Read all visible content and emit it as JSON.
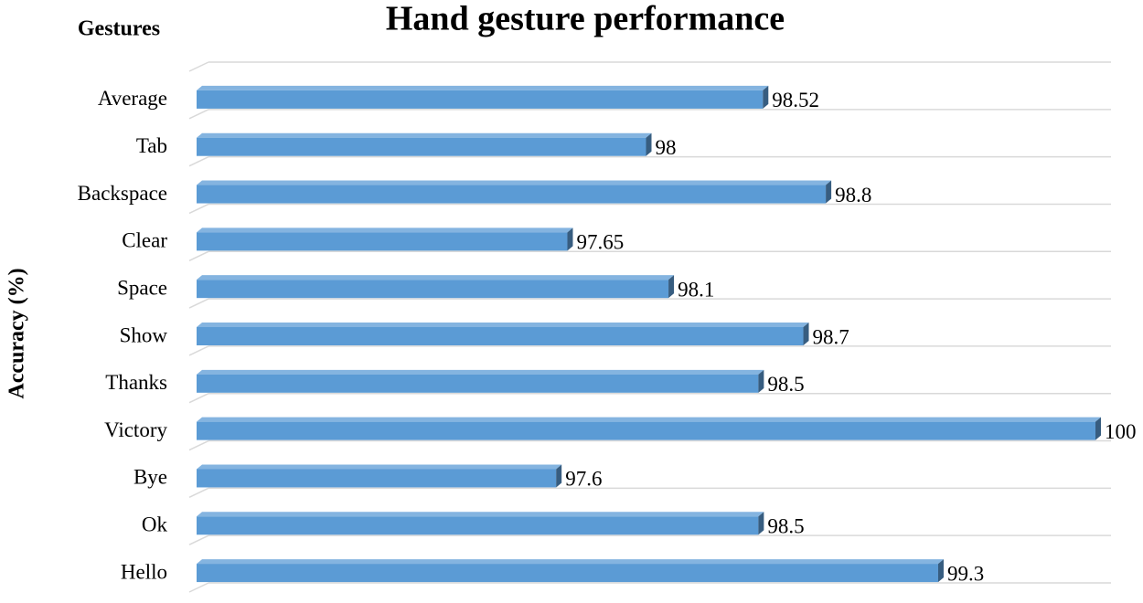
{
  "chart_data": {
    "type": "bar3d_horizontal",
    "title": "Hand gesture performance",
    "category_axis_title": "Gestures",
    "value_axis_title": "Accuracy (%)",
    "categories": [
      "Hello",
      "Ok",
      "Bye",
      "Victory",
      "Thanks",
      "Show",
      "Space",
      "Clear",
      "Backspace",
      "Tab",
      "Average"
    ],
    "values": [
      99.3,
      98.5,
      97.6,
      100,
      98.5,
      98.7,
      98.1,
      97.65,
      98.8,
      98,
      98.52
    ],
    "color": "#5b9bd5",
    "xlim": [
      96,
      100
    ],
    "data_labels": true
  }
}
